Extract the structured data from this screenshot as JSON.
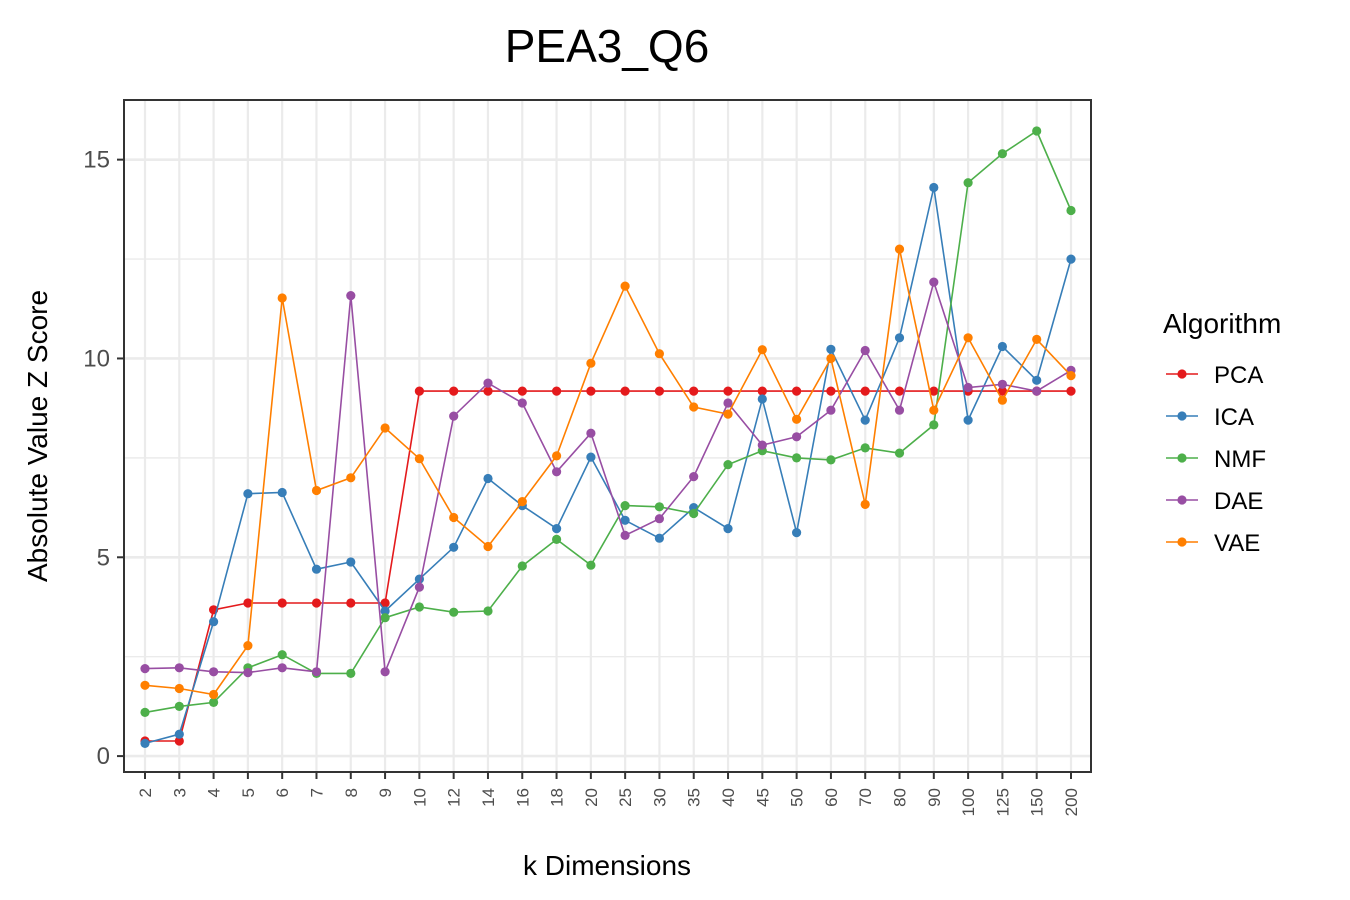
{
  "chart_data": {
    "type": "line",
    "title": "PEA3_Q6",
    "xlabel": "k Dimensions",
    "ylabel": "Absolute Value Z Score",
    "categories": [
      "2",
      "3",
      "4",
      "5",
      "6",
      "7",
      "8",
      "9",
      "10",
      "12",
      "14",
      "16",
      "18",
      "20",
      "25",
      "30",
      "35",
      "40",
      "45",
      "50",
      "60",
      "70",
      "80",
      "90",
      "100",
      "125",
      "150",
      "200"
    ],
    "ylim": [
      -0.4,
      16.5
    ],
    "yticks": [
      0,
      5,
      10,
      15
    ],
    "grid": true,
    "legend": {
      "title": "Algorithm",
      "position": "right"
    },
    "series": [
      {
        "name": "PCA",
        "color": "#e41a1c",
        "values": [
          0.38,
          0.38,
          null,
          null,
          null,
          null,
          null,
          null,
          9.18,
          9.18,
          9.18,
          9.18,
          9.18,
          9.18,
          9.18,
          9.18,
          9.18,
          9.18,
          9.18,
          9.18,
          9.18,
          9.18,
          9.18,
          9.18,
          9.18,
          9.18,
          9.18,
          9.18
        ]
      },
      {
        "name": "ICA",
        "color": "#377eb8",
        "values": [
          0.32,
          0.55,
          3.38,
          6.6,
          6.63,
          4.7,
          4.88,
          3.65,
          4.45,
          5.25,
          6.98,
          6.3,
          5.72,
          7.52,
          5.93,
          5.48,
          6.25,
          5.72,
          8.98,
          5.62,
          10.23,
          8.45,
          10.52,
          14.3,
          8.45,
          10.3,
          9.45,
          12.5
        ]
      },
      {
        "name": "NMF",
        "color": "#4daf4a",
        "values": [
          1.1,
          1.25,
          1.35,
          2.22,
          2.55,
          2.08,
          2.08,
          3.48,
          3.75,
          3.62,
          3.65,
          4.78,
          5.45,
          4.8,
          6.3,
          6.27,
          6.1,
          7.33,
          7.68,
          7.5,
          7.45,
          7.75,
          7.62,
          8.33,
          14.42,
          15.15,
          15.72,
          13.72
        ]
      },
      {
        "name": "DAE",
        "color": "#984ea3",
        "values": [
          2.2,
          2.22,
          2.12,
          2.1,
          2.22,
          2.12,
          11.58,
          2.12,
          4.25,
          8.55,
          9.38,
          8.88,
          7.15,
          8.12,
          5.55,
          5.97,
          7.03,
          8.88,
          7.82,
          8.03,
          8.7,
          10.2,
          8.7,
          11.92,
          9.27,
          9.35,
          9.18,
          9.7
        ]
      },
      {
        "name": "VAE",
        "color": "#ff7f00",
        "values": [
          1.78,
          1.7,
          1.55,
          2.78,
          11.52,
          6.68,
          7.0,
          8.25,
          7.48,
          6.0,
          5.27,
          6.4,
          7.55,
          9.88,
          11.82,
          10.12,
          8.78,
          8.6,
          10.22,
          8.47,
          10.0,
          6.33,
          12.75,
          8.7,
          10.52,
          8.95,
          10.48,
          9.57
        ]
      }
    ],
    "extra_points": [
      {
        "series": "PCA",
        "segments": [
          [
            1,
            0.38
          ],
          [
            2,
            3.68
          ],
          [
            3,
            3.85
          ],
          [
            4,
            3.85
          ],
          [
            5,
            3.85
          ],
          [
            6,
            3.85
          ],
          [
            7,
            3.85
          ],
          [
            8,
            9.18
          ]
        ]
      }
    ]
  }
}
